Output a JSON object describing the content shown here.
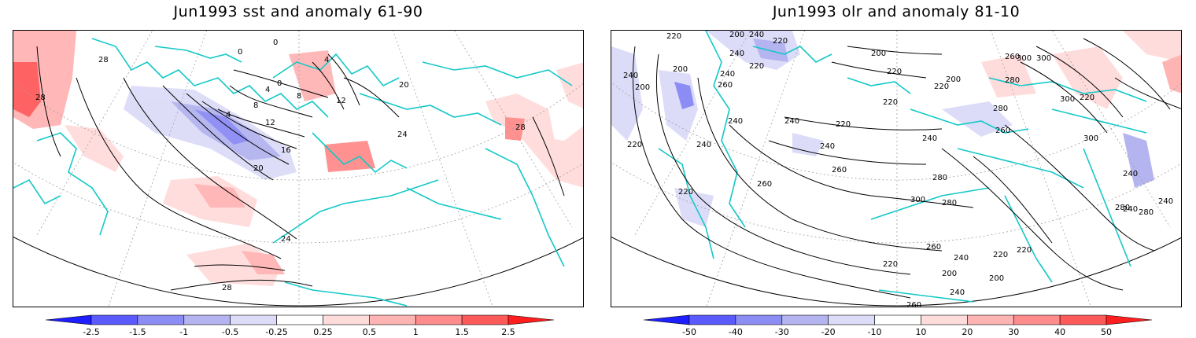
{
  "panels": [
    {
      "title": "Jun1993 sst and anomaly 61-90",
      "contour_labels": [
        "28",
        "28",
        "0",
        "0",
        "0",
        "4",
        "4",
        "4",
        "8",
        "8",
        "12",
        "12",
        "16",
        "20",
        "20",
        "24",
        "24",
        "28",
        "28"
      ],
      "colorbar": {
        "ticks": [
          "-2.5",
          "-1.5",
          "-1",
          "-0.5",
          "-0.25",
          "0.25",
          "0.5",
          "1",
          "1.5",
          "2.5"
        ],
        "colors": [
          "#1e1eff",
          "#5a5aff",
          "#8c8cf5",
          "#b4b4f0",
          "#dcdcf8",
          "#ffffff",
          "#ffdcdc",
          "#ffb4b4",
          "#ff8c8c",
          "#ff5a5a",
          "#ff1e1e"
        ]
      }
    },
    {
      "title": "Jun1993 olr and anomaly 81-10",
      "contour_labels": [
        "220",
        "200",
        "240",
        "220",
        "240",
        "200",
        "240",
        "220",
        "240",
        "200",
        "260",
        "240",
        "240",
        "220",
        "220",
        "200",
        "220",
        "220",
        "220",
        "240",
        "260",
        "240",
        "260",
        "220",
        "240",
        "280",
        "260",
        "300",
        "300",
        "280",
        "280",
        "300",
        "280",
        "260",
        "220",
        "200",
        "240",
        "220",
        "200",
        "220",
        "240",
        "260",
        "240",
        "280",
        "300",
        "300",
        "220",
        "200",
        "240",
        "240",
        "260",
        "280"
      ],
      "colorbar": {
        "ticks": [
          "-50",
          "-40",
          "-30",
          "-20",
          "-10",
          "10",
          "20",
          "30",
          "40",
          "50"
        ],
        "colors": [
          "#1e1eff",
          "#5a5aff",
          "#8c8cf5",
          "#b4b4f0",
          "#dcdcf8",
          "#ffffff",
          "#ffdcdc",
          "#ffb4b4",
          "#ff8c8c",
          "#ff5a5a",
          "#ff1e1e"
        ]
      }
    }
  ],
  "colors": {
    "coastline": "#14c8c8",
    "contour": "#000000",
    "graticule": "#a0a0a0",
    "positive_anomaly": "#ff8080",
    "negative_anomaly": "#8080ff"
  }
}
